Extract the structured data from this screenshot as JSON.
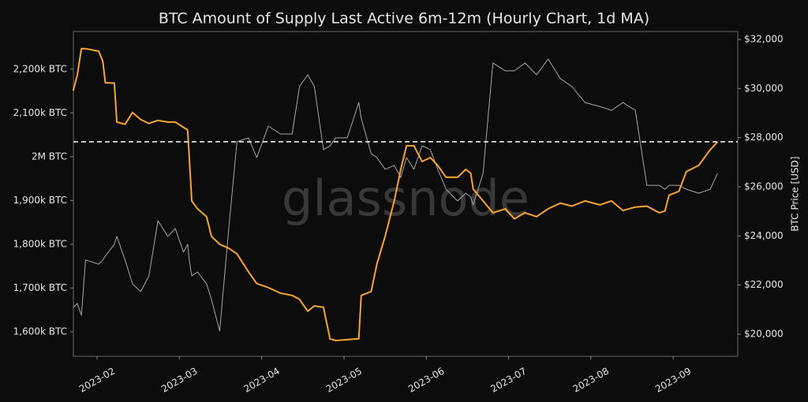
{
  "chart_data": {
    "type": "line",
    "title": "BTC Amount of Supply Last Active 6m-12m (Hourly Chart, 1d MA)",
    "y2label": "BTC Price [USD]",
    "watermark": "glassnode",
    "x": [
      1.71,
      1.76,
      1.81,
      1.86,
      2.02,
      2.07,
      2.1,
      2.21,
      2.24,
      2.34,
      2.43,
      2.53,
      2.63,
      2.74,
      2.86,
      2.95,
      3.05,
      3.1,
      3.12,
      3.15,
      3.22,
      3.33,
      3.39,
      3.49,
      3.6,
      3.7,
      3.84,
      3.94,
      4.08,
      4.23,
      4.37,
      4.46,
      4.56,
      4.64,
      4.75,
      4.83,
      4.9,
      5.04,
      5.18,
      5.21,
      5.33,
      5.4,
      5.5,
      5.61,
      5.69,
      5.76,
      5.85,
      5.95,
      6.05,
      6.14,
      6.24,
      6.38,
      6.48,
      6.54,
      6.57,
      6.69,
      6.81,
      6.96,
      7.07,
      7.2,
      7.34,
      7.48,
      7.63,
      7.77,
      7.93,
      8.11,
      8.25,
      8.39,
      8.54,
      8.68,
      8.83,
      8.9,
      8.95,
      9.07,
      9.16,
      9.31,
      9.45,
      9.54
    ],
    "series": [
      {
        "color": "#f7a531",
        "values": [
          2151000,
          2187000,
          2247000,
          2247000,
          2241000,
          2218000,
          2169000,
          2168000,
          2079000,
          2074000,
          2101000,
          2085000,
          2076000,
          2083000,
          2079000,
          2079000,
          2067000,
          2061000,
          1998000,
          1899000,
          1881000,
          1863000,
          1818000,
          1800000,
          1791000,
          1778000,
          1737000,
          1710000,
          1701000,
          1688000,
          1683000,
          1674000,
          1647000,
          1659000,
          1656000,
          1584000,
          1580000,
          1582000,
          1584000,
          1683000,
          1692000,
          1755000,
          1818000,
          1899000,
          1971000,
          2025000,
          2025000,
          1989000,
          1998000,
          1980000,
          1953000,
          1953000,
          1971000,
          1962000,
          1926000,
          1899000,
          1872000,
          1881000,
          1858000,
          1872000,
          1863000,
          1881000,
          1894000,
          1887000,
          1899000,
          1890000,
          1899000,
          1877000,
          1885000,
          1887000,
          1872000,
          1876000,
          1912000,
          1921000,
          1966000,
          1980000,
          2016000,
          2034000
        ]
      },
      {
        "color": "#a6a6a6",
        "axis": "y2",
        "values": [
          21090,
          21250,
          20770,
          23020,
          22850,
          23020,
          23180,
          23660,
          23980,
          23020,
          22050,
          21730,
          22370,
          24620,
          23980,
          24300,
          23340,
          23660,
          23020,
          22370,
          22530,
          22050,
          21410,
          20130,
          24300,
          27830,
          27990,
          27190,
          28470,
          28150,
          28150,
          30080,
          30560,
          30080,
          27510,
          27670,
          27990,
          27990,
          29430,
          28790,
          27350,
          27190,
          26710,
          26870,
          26380,
          27190,
          26710,
          27670,
          27510,
          26710,
          25900,
          25420,
          25740,
          25580,
          25260,
          26550,
          31040,
          30720,
          30720,
          31040,
          30560,
          31200,
          30400,
          30080,
          29430,
          29270,
          29110,
          29430,
          29110,
          26060,
          26060,
          25900,
          26060,
          26060,
          25900,
          25740,
          25900,
          26550
        ]
      }
    ],
    "reference_line": 2034000,
    "xlim": [
      1.712,
      9.785
    ],
    "xticks": [
      {
        "value": 2,
        "label": "2023-02"
      },
      {
        "value": 3,
        "label": "2023-03"
      },
      {
        "value": 4,
        "label": "2023-04"
      },
      {
        "value": 5,
        "label": "2023-05"
      },
      {
        "value": 6,
        "label": "2023-06"
      },
      {
        "value": 7,
        "label": "2023-07"
      },
      {
        "value": 8,
        "label": "2023-08"
      },
      {
        "value": 9,
        "label": "2023-09"
      }
    ],
    "ylim": [
      1544000,
      2286000
    ],
    "yticks": [
      {
        "value": 1600000,
        "label": "1,600k BTC"
      },
      {
        "value": 1700000,
        "label": "1,700k BTC"
      },
      {
        "value": 1800000,
        "label": "1,800k BTC"
      },
      {
        "value": 1900000,
        "label": "1,900k BTC"
      },
      {
        "value": 2000000,
        "label": "2M BTC"
      },
      {
        "value": 2100000,
        "label": "2,100k BTC"
      },
      {
        "value": 2200000,
        "label": "2,200k BTC"
      }
    ],
    "y2lim": [
      19100,
      32320
    ],
    "y2ticks": [
      {
        "value": 20000,
        "label": "$20,000"
      },
      {
        "value": 22000,
        "label": "$22,000"
      },
      {
        "value": 24000,
        "label": "$24,000"
      },
      {
        "value": 26000,
        "label": "$26,000"
      },
      {
        "value": 28000,
        "label": "$28,000"
      },
      {
        "value": 30000,
        "label": "$30,000"
      },
      {
        "value": 32000,
        "label": "$32,000"
      }
    ]
  }
}
